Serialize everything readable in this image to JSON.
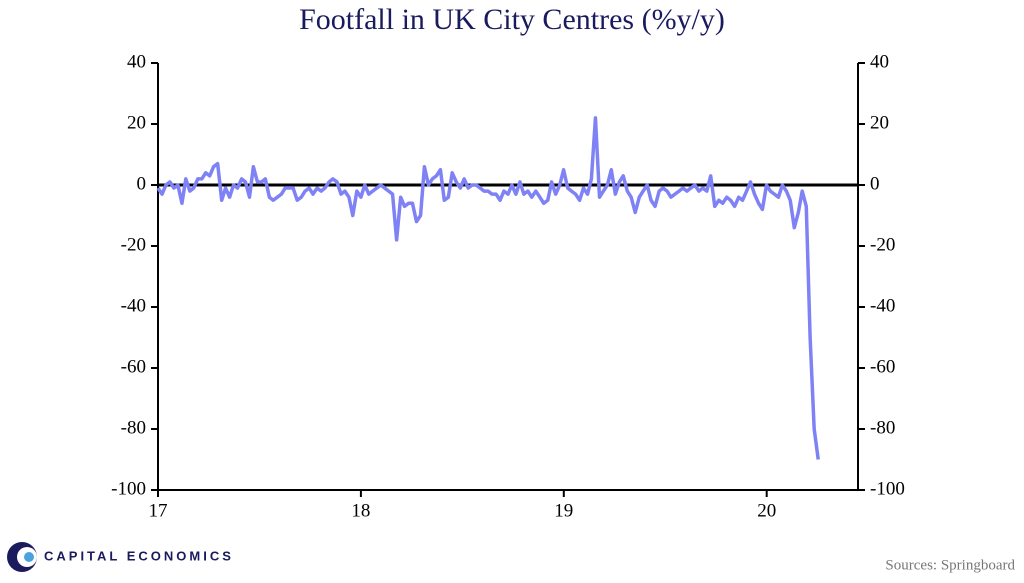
{
  "chart_data": {
    "type": "line",
    "title": "Footfall in UK City Centres (%y/y)",
    "source": "Sources: Springboard",
    "brand": "CAPITAL ECONOMICS",
    "xlim": [
      17,
      20.45
    ],
    "xticks": [
      17,
      18,
      19,
      20
    ],
    "ylim": [
      -100,
      40
    ],
    "yticks": [
      -100,
      -80,
      -60,
      -40,
      -20,
      0,
      20,
      40
    ],
    "y2lim": [
      -100,
      40
    ],
    "y2ticks": [
      -100,
      -80,
      -60,
      -40,
      -20,
      0,
      20,
      40
    ],
    "x": [
      17,
      17.02,
      17.039,
      17.059,
      17.078,
      17.098,
      17.118,
      17.137,
      17.157,
      17.176,
      17.196,
      17.216,
      17.235,
      17.255,
      17.274,
      17.294,
      17.314,
      17.333,
      17.353,
      17.372,
      17.392,
      17.412,
      17.431,
      17.451,
      17.47,
      17.49,
      17.51,
      17.529,
      17.549,
      17.568,
      17.588,
      17.608,
      17.627,
      17.647,
      17.666,
      17.686,
      17.706,
      17.725,
      17.745,
      17.764,
      17.784,
      17.804,
      17.823,
      17.843,
      17.862,
      17.882,
      17.902,
      17.921,
      17.941,
      17.96,
      17.98,
      18,
      18.019,
      18.039,
      18.058,
      18.078,
      18.098,
      18.117,
      18.137,
      18.156,
      18.176,
      18.196,
      18.215,
      18.235,
      18.254,
      18.274,
      18.294,
      18.313,
      18.333,
      18.352,
      18.372,
      18.392,
      18.411,
      18.431,
      18.45,
      18.47,
      18.49,
      18.509,
      18.529,
      18.548,
      18.568,
      18.588,
      18.607,
      18.627,
      18.646,
      18.666,
      18.686,
      18.705,
      18.725,
      18.744,
      18.764,
      18.784,
      18.803,
      18.823,
      18.842,
      18.862,
      18.882,
      18.901,
      18.921,
      18.94,
      18.96,
      18.98,
      18.999,
      19.019,
      19.038,
      19.058,
      19.078,
      19.097,
      19.117,
      19.136,
      19.156,
      19.176,
      19.195,
      19.215,
      19.234,
      19.254,
      19.274,
      19.293,
      19.313,
      19.332,
      19.352,
      19.372,
      19.391,
      19.411,
      19.43,
      19.45,
      19.47,
      19.489,
      19.509,
      19.528,
      19.548,
      19.568,
      19.587,
      19.607,
      19.626,
      19.646,
      19.666,
      19.685,
      19.705,
      19.724,
      19.744,
      19.764,
      19.783,
      19.803,
      19.822,
      19.842,
      19.862,
      19.881,
      19.901,
      19.92,
      19.94,
      19.96,
      19.979,
      19.999,
      20.018,
      20.038,
      20.058,
      20.077,
      20.097,
      20.116,
      20.136,
      20.156,
      20.175,
      20.195,
      20.214,
      20.234,
      20.254
    ],
    "series": [
      {
        "color": "#7f82f5",
        "values": [
          -1,
          -3,
          0,
          1,
          -1,
          0,
          -6,
          2,
          -2,
          -1,
          2,
          2,
          4,
          3,
          6,
          7,
          -5,
          -1,
          -4,
          0,
          -1,
          2,
          1,
          -4,
          6,
          1,
          1,
          2,
          -4,
          -5,
          -4,
          -3,
          -1,
          -1,
          -1,
          -5,
          -4,
          -2,
          -1,
          -3,
          -1,
          -2,
          -1,
          1,
          2,
          1,
          -3,
          -2,
          -4,
          -10,
          -2,
          -4,
          0,
          -3,
          -2,
          -1,
          0,
          -1,
          -2,
          -3,
          -18,
          -4,
          -7,
          -6,
          -6,
          -12,
          -10,
          6,
          0,
          2,
          3,
          5,
          -5,
          -4,
          4,
          1,
          -1,
          2,
          -1,
          0,
          0,
          -1,
          -2,
          -2,
          -3,
          -3,
          -5,
          -2,
          -3,
          0,
          -3,
          1,
          -3,
          -2,
          -4,
          -2,
          -4,
          -6,
          -5,
          1,
          -3,
          0,
          5,
          -1,
          -2,
          -3,
          -5,
          -1,
          -3,
          2,
          22,
          -4,
          -2,
          0,
          5,
          -3,
          1,
          3,
          -2,
          -4,
          -9,
          -4,
          -2,
          0,
          -5,
          -7,
          -2,
          -1,
          -2,
          -4,
          -3,
          -2,
          -1,
          -2,
          -1,
          0,
          -2,
          -1,
          -2,
          3,
          -7,
          -5,
          -6,
          -4,
          -5,
          -7,
          -4,
          -5,
          -2,
          1,
          -3,
          -6,
          -8,
          0,
          -2,
          -3,
          -4,
          0,
          -2,
          -5,
          -14,
          -9,
          -2,
          -7,
          -50,
          -80,
          -90
        ]
      }
    ]
  }
}
